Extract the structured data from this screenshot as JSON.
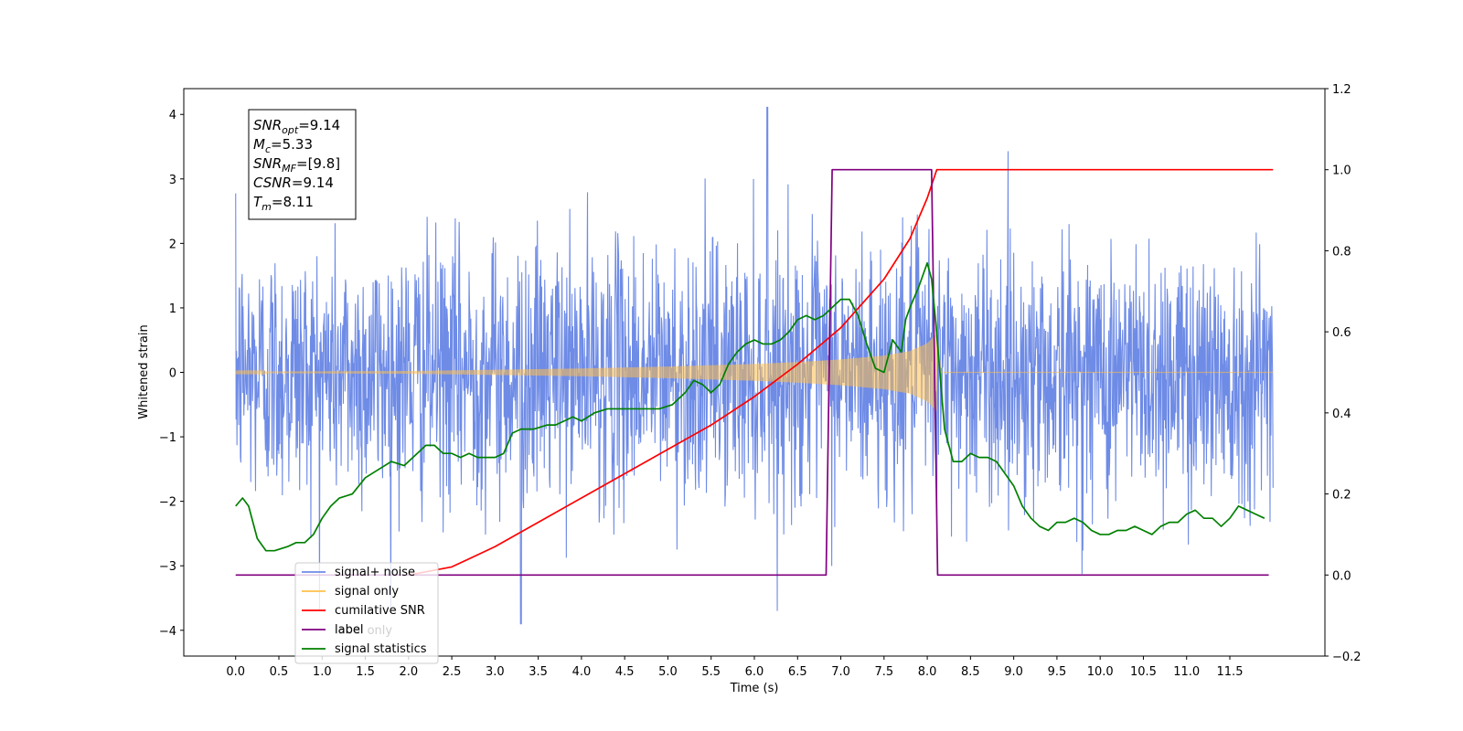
{
  "chart_data": {
    "type": "line",
    "xlabel": "Time (s)",
    "ylabel": "Whitened strain",
    "xlim": [
      -0.6,
      12.6
    ],
    "xticks": [
      0.0,
      0.5,
      1.0,
      1.5,
      2.0,
      2.5,
      3.0,
      3.5,
      4.0,
      4.5,
      5.0,
      5.5,
      6.0,
      6.5,
      7.0,
      7.5,
      8.0,
      8.5,
      9.0,
      9.5,
      10.0,
      10.5,
      11.0,
      11.5
    ],
    "xtick_labels": [
      "0.0",
      "0.5",
      "1.0",
      "1.5",
      "2.0",
      "2.5",
      "3.0",
      "3.5",
      "4.0",
      "4.5",
      "5.0",
      "5.5",
      "6.0",
      "6.5",
      "7.0",
      "7.5",
      "8.0",
      "8.5",
      "9.0",
      "9.5",
      "10.0",
      "10.5",
      "11.0",
      "11.5"
    ],
    "ylim_left": [
      -4.4,
      4.4
    ],
    "yticks_left": [
      -4,
      -3,
      -2,
      -1,
      0,
      1,
      2,
      3,
      4
    ],
    "ytick_labels_left": [
      "−4",
      "−3",
      "−2",
      "−1",
      "0",
      "1",
      "2",
      "3",
      "4"
    ],
    "ylim_right": [
      -0.2,
      1.2
    ],
    "yticks_right": [
      -0.2,
      0.0,
      0.2,
      0.4,
      0.6,
      0.8,
      1.0,
      1.2
    ],
    "ytick_labels_right": [
      "−0.2",
      "0.0",
      "0.2",
      "0.4",
      "0.6",
      "0.8",
      "1.0",
      "1.2"
    ],
    "grid": false,
    "legend_position": "lower-left",
    "annotation_box": {
      "lines": [
        {
          "base": "SNR",
          "sub": "opt",
          "rest": "=9.14"
        },
        {
          "base": "M",
          "sub": "c",
          "rest": "=5.33"
        },
        {
          "base": "SNR",
          "sub": "MF",
          "rest": "=[9.8]"
        },
        {
          "base": "CSNR",
          "sub": "",
          "rest": "=9.14"
        },
        {
          "base": "T",
          "sub": "m",
          "rest": "=8.11"
        }
      ]
    },
    "legend": [
      {
        "label": "signal+ noise",
        "color": "#6e8be6"
      },
      {
        "label": "signal only",
        "color": "#ffc04d"
      },
      {
        "label": "cumilative SNR",
        "color": "#ff0000"
      },
      {
        "label": "label",
        "color": "#800080"
      },
      {
        "label": "signal statistics",
        "color": "#008000"
      }
    ],
    "hidden_legend_text": "label only",
    "series": [
      {
        "name": "signal+ noise",
        "axis": "left",
        "color": "#6e8be6",
        "kind": "noise",
        "x_range": [
          0.0,
          12.0
        ],
        "typical_amplitude": [
          -2.5,
          2.5
        ],
        "peak_max": 4.11,
        "peak_min": -3.9
      },
      {
        "name": "signal only",
        "axis": "left",
        "color": "#ffc04d",
        "kind": "chirp",
        "x_range": [
          0.0,
          8.11
        ],
        "envelope": {
          "x": [
            0.0,
            2.0,
            3.0,
            4.0,
            5.0,
            5.5,
            6.0,
            6.5,
            7.0,
            7.5,
            7.8,
            8.0,
            8.11
          ],
          "y": [
            0.01,
            0.02,
            0.04,
            0.06,
            0.09,
            0.11,
            0.13,
            0.16,
            0.2,
            0.26,
            0.33,
            0.45,
            0.6
          ]
        }
      },
      {
        "name": "cumilative SNR",
        "axis": "right",
        "color": "#ff0000",
        "x": [
          2.0,
          2.5,
          3.0,
          3.5,
          4.0,
          4.5,
          5.0,
          5.5,
          6.0,
          6.5,
          7.0,
          7.5,
          7.8,
          8.0,
          8.11,
          8.2,
          12.0
        ],
        "y": [
          0.0,
          0.02,
          0.07,
          0.13,
          0.19,
          0.25,
          0.31,
          0.37,
          0.44,
          0.52,
          0.61,
          0.73,
          0.83,
          0.93,
          1.0,
          1.0,
          1.0
        ]
      },
      {
        "name": "label",
        "axis": "right",
        "color": "#800080",
        "x": [
          0.0,
          6.83,
          6.9,
          8.05,
          8.12,
          11.95
        ],
        "y": [
          0.0,
          0.0,
          1.0,
          1.0,
          0.0,
          0.0
        ]
      },
      {
        "name": "signal statistics",
        "axis": "right",
        "color": "#008000",
        "x": [
          0.0,
          0.08,
          0.15,
          0.25,
          0.35,
          0.45,
          0.6,
          0.7,
          0.8,
          0.9,
          1.0,
          1.1,
          1.2,
          1.35,
          1.5,
          1.65,
          1.8,
          1.95,
          2.1,
          2.2,
          2.3,
          2.4,
          2.5,
          2.6,
          2.7,
          2.8,
          2.9,
          3.0,
          3.1,
          3.2,
          3.3,
          3.45,
          3.6,
          3.7,
          3.8,
          3.9,
          4.0,
          4.15,
          4.3,
          4.45,
          4.6,
          4.75,
          4.9,
          5.05,
          5.2,
          5.3,
          5.4,
          5.5,
          5.6,
          5.7,
          5.8,
          5.9,
          6.0,
          6.1,
          6.2,
          6.3,
          6.4,
          6.5,
          6.6,
          6.7,
          6.8,
          6.9,
          7.0,
          7.1,
          7.2,
          7.3,
          7.4,
          7.5,
          7.6,
          7.7,
          7.75,
          7.8,
          7.9,
          8.0,
          8.05,
          8.1,
          8.15,
          8.2,
          8.3,
          8.4,
          8.5,
          8.6,
          8.7,
          8.8,
          8.9,
          9.0,
          9.1,
          9.2,
          9.3,
          9.4,
          9.5,
          9.6,
          9.7,
          9.8,
          9.9,
          10.0,
          10.1,
          10.2,
          10.3,
          10.4,
          10.5,
          10.6,
          10.7,
          10.8,
          10.9,
          11.0,
          11.1,
          11.2,
          11.3,
          11.4,
          11.5,
          11.6,
          11.7,
          11.8,
          11.9
        ],
        "y": [
          0.17,
          0.19,
          0.17,
          0.09,
          0.06,
          0.06,
          0.07,
          0.08,
          0.08,
          0.1,
          0.14,
          0.17,
          0.19,
          0.2,
          0.24,
          0.26,
          0.28,
          0.27,
          0.3,
          0.32,
          0.32,
          0.3,
          0.3,
          0.29,
          0.3,
          0.29,
          0.29,
          0.29,
          0.3,
          0.35,
          0.36,
          0.36,
          0.37,
          0.37,
          0.38,
          0.39,
          0.38,
          0.4,
          0.41,
          0.41,
          0.41,
          0.41,
          0.41,
          0.42,
          0.45,
          0.48,
          0.47,
          0.45,
          0.47,
          0.52,
          0.55,
          0.57,
          0.58,
          0.57,
          0.57,
          0.58,
          0.6,
          0.63,
          0.64,
          0.63,
          0.64,
          0.66,
          0.68,
          0.68,
          0.64,
          0.57,
          0.51,
          0.5,
          0.58,
          0.55,
          0.63,
          0.66,
          0.71,
          0.77,
          0.73,
          0.62,
          0.49,
          0.36,
          0.28,
          0.28,
          0.3,
          0.29,
          0.29,
          0.28,
          0.25,
          0.22,
          0.17,
          0.14,
          0.12,
          0.11,
          0.13,
          0.13,
          0.14,
          0.13,
          0.11,
          0.1,
          0.1,
          0.11,
          0.11,
          0.12,
          0.11,
          0.1,
          0.12,
          0.13,
          0.13,
          0.15,
          0.16,
          0.14,
          0.14,
          0.12,
          0.14,
          0.17,
          0.16,
          0.15,
          0.14
        ]
      }
    ]
  }
}
